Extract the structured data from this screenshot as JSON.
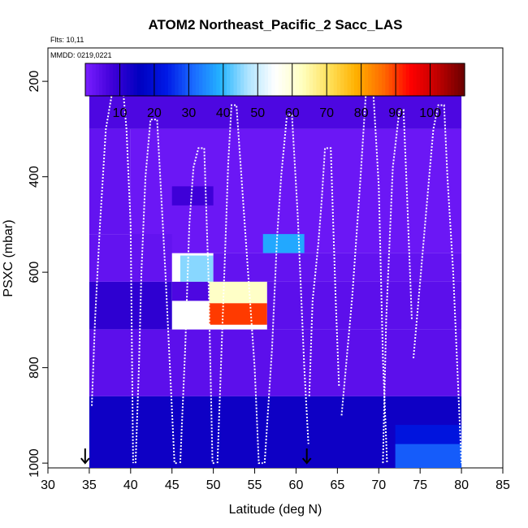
{
  "chart_data": {
    "type": "heatmap",
    "title": "ATOM2 Northeast_Pacific_2 Sacc_LAS",
    "flights_note": "Flts: 10,11",
    "dates_note": "MMDD: 0219,0221",
    "xlabel": "Latitude (deg N)",
    "ylabel": "PSXC (mbar)",
    "xlim": [
      30,
      85
    ],
    "ylim": [
      1010,
      130
    ],
    "x_ticks": [
      30,
      35,
      40,
      45,
      50,
      55,
      60,
      65,
      70,
      75,
      80,
      85
    ],
    "y_ticks": [
      200,
      400,
      600,
      800,
      1000
    ],
    "colorbar": {
      "min": 0,
      "max": 110,
      "ticks": [
        10,
        20,
        30,
        40,
        50,
        60,
        70,
        80,
        90,
        100
      ],
      "palette": [
        "#7a1fff",
        "#3f00d8",
        "#0000c0",
        "#0019e6",
        "#1a6bff",
        "#24b4ff",
        "#aee4ff",
        "#ffffff",
        "#ffffc0",
        "#ffe15a",
        "#ffb000",
        "#ff6a00",
        "#ff0000",
        "#c00000",
        "#6a0000"
      ]
    },
    "markers": [
      {
        "label": "arrow-down",
        "lat": 34.5,
        "pressure": 1000
      },
      {
        "label": "arrow-down",
        "lat": 61.3,
        "pressure": 1000
      }
    ],
    "cells": [
      {
        "lat0": 36.0,
        "lat1": 40.0,
        "p0": 170,
        "p1": 220,
        "value": 4
      },
      {
        "lat0": 35.0,
        "lat1": 80.0,
        "p0": 220,
        "p1": 300,
        "value": 6
      },
      {
        "lat0": 35.0,
        "lat1": 40.0,
        "p0": 300,
        "p1": 520,
        "value": 3
      },
      {
        "lat0": 40.0,
        "lat1": 80.0,
        "p0": 300,
        "p1": 560,
        "value": 2
      },
      {
        "lat0": 45.0,
        "lat1": 50.0,
        "p0": 420,
        "p1": 460,
        "value": 8
      },
      {
        "lat0": 56.0,
        "lat1": 61.0,
        "p0": 520,
        "p1": 560,
        "value": 38
      },
      {
        "lat0": 35.0,
        "lat1": 45.0,
        "p0": 520,
        "p1": 620,
        "value": 3
      },
      {
        "lat0": 46.0,
        "lat1": 50.0,
        "p0": 565,
        "p1": 620,
        "value": 45
      },
      {
        "lat0": 50.0,
        "lat1": 80.0,
        "p0": 560,
        "p1": 620,
        "value": 3
      },
      {
        "lat0": 35.0,
        "lat1": 45.0,
        "p0": 620,
        "p1": 720,
        "value": 10
      },
      {
        "lat0": 45.0,
        "lat1": 49.5,
        "p0": 620,
        "p1": 660,
        "value": 6
      },
      {
        "lat0": 49.5,
        "lat1": 56.5,
        "p0": 620,
        "p1": 665,
        "value": 62
      },
      {
        "lat0": 49.5,
        "lat1": 56.5,
        "p0": 665,
        "p1": 710,
        "value": 90
      },
      {
        "lat0": 56.5,
        "lat1": 80.0,
        "p0": 620,
        "p1": 720,
        "value": 4
      },
      {
        "lat0": 35.0,
        "lat1": 80.0,
        "p0": 720,
        "p1": 860,
        "value": 4
      },
      {
        "lat0": 35.0,
        "lat1": 80.0,
        "p0": 860,
        "p1": 1010,
        "value": 14
      },
      {
        "lat0": 72.0,
        "lat1": 80.0,
        "p0": 920,
        "p1": 960,
        "value": 22
      },
      {
        "lat0": 72.0,
        "lat1": 80.0,
        "p0": 960,
        "p1": 1010,
        "value": 30
      }
    ],
    "flight_tracks": [
      {
        "lat": [
          35.3,
          35.7,
          36.3,
          37.0,
          38.0,
          39.0,
          39.5,
          40.0,
          40.3
        ],
        "pressure": [
          880,
          700,
          500,
          300,
          200,
          200,
          300,
          500,
          1000
        ]
      },
      {
        "lat": [
          40.6,
          41.0,
          41.3,
          41.8,
          42.4,
          43.2,
          44.2,
          45.3,
          45.6
        ],
        "pressure": [
          1000,
          800,
          600,
          400,
          280,
          280,
          600,
          1000,
          1000
        ]
      },
      {
        "lat": [
          46.0,
          46.6,
          47.1,
          47.6,
          48.2,
          48.9,
          49.4,
          49.9,
          50.2
        ],
        "pressure": [
          1000,
          760,
          500,
          380,
          340,
          340,
          600,
          1000,
          1000
        ]
      },
      {
        "lat": [
          50.5,
          51.0,
          51.5,
          51.8,
          52.2,
          52.8,
          53.8,
          55.0,
          55.5,
          56.0
        ],
        "pressure": [
          1000,
          760,
          520,
          370,
          250,
          250,
          500,
          800,
          1000,
          1000
        ]
      },
      {
        "lat": [
          56.2,
          57.1,
          57.7,
          58.2,
          58.9,
          59.5,
          60.2,
          61.0,
          61.5
        ],
        "pressure": [
          1000,
          760,
          530,
          400,
          270,
          270,
          480,
          800,
          960
        ]
      },
      {
        "lat": [
          61.6,
          62.0,
          62.7,
          63.1,
          63.5,
          64.2,
          64.8,
          65.2
        ],
        "pressure": [
          860,
          660,
          540,
          450,
          340,
          340,
          660,
          840
        ]
      },
      {
        "lat": [
          65.5,
          66.8,
          67.8,
          68.5,
          69.3,
          70.0,
          70.5,
          71.0
        ],
        "pressure": [
          900,
          650,
          400,
          210,
          210,
          420,
          780,
          1000
        ]
      },
      {
        "lat": [
          70.5,
          70.9,
          71.3,
          71.7,
          72.5,
          73.0,
          73.4,
          74.0
        ],
        "pressure": [
          1000,
          700,
          540,
          380,
          260,
          260,
          430,
          700
        ]
      },
      {
        "lat": [
          74.2,
          75.0,
          75.8,
          76.6,
          77.2,
          77.9,
          78.3,
          79.0,
          79.5,
          80.0
        ],
        "pressure": [
          780,
          620,
          460,
          300,
          250,
          250,
          400,
          600,
          800,
          1000
        ]
      }
    ]
  }
}
